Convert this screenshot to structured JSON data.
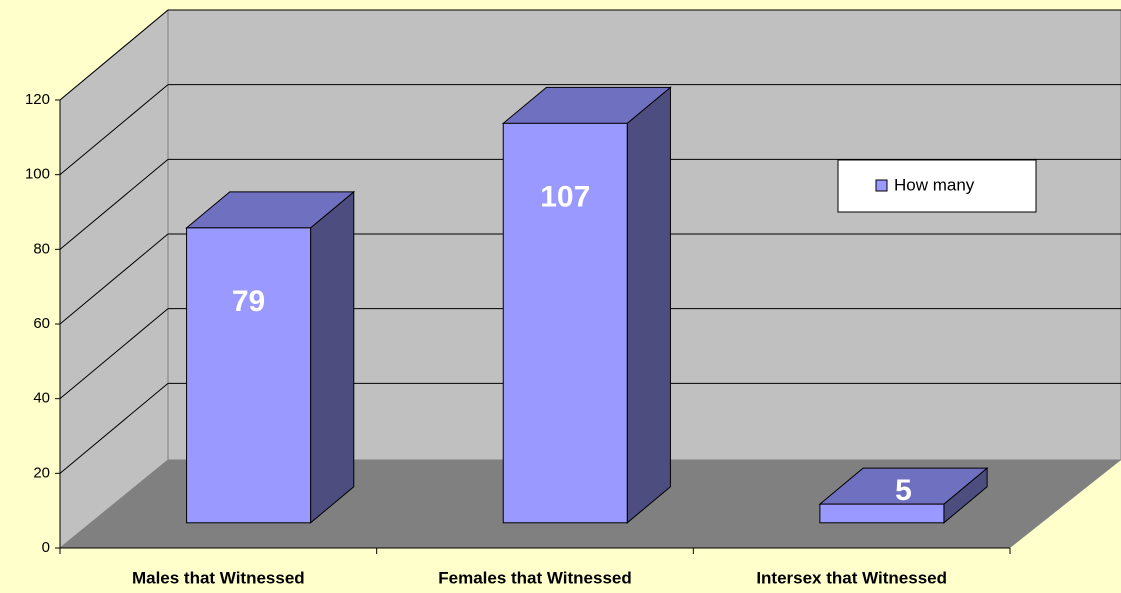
{
  "chart_data": {
    "type": "bar3d",
    "categories": [
      "Males that Witnessed",
      "Females that Witnessed",
      "Intersex that Witnessed"
    ],
    "series": [
      {
        "name": "How many",
        "color": "#9999ff",
        "values": [
          79,
          107,
          5
        ]
      }
    ],
    "ylim": [
      0,
      120
    ],
    "yticks": [
      0,
      20,
      40,
      60,
      80,
      100,
      120
    ],
    "grid": true,
    "legend": "right"
  }
}
